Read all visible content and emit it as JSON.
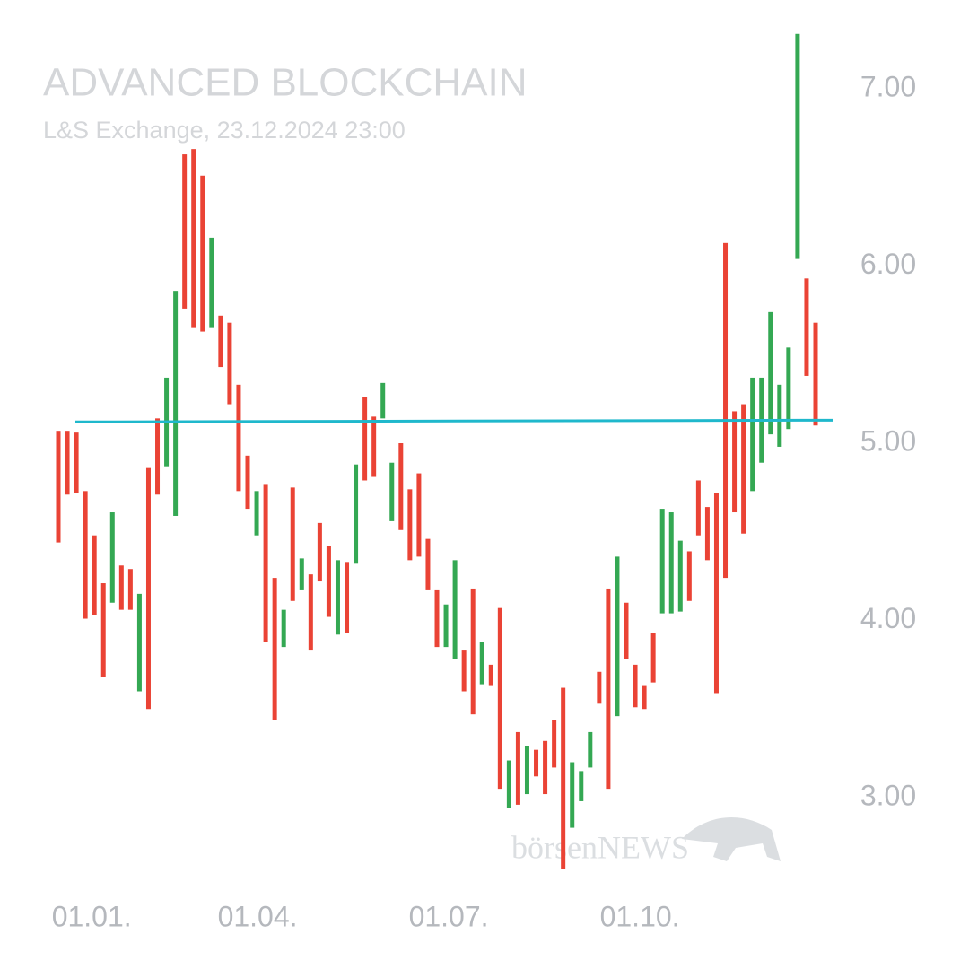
{
  "chart_data": {
    "type": "candlestick",
    "title": "ADVANCED BLOCKCHAIN",
    "subtitle": "L&S Exchange, 23.12.2024 23:00",
    "watermark": "börsenNEWS",
    "up_color": "#34a853",
    "down_color": "#ea4335",
    "categories": [
      null,
      null,
      null,
      null,
      null,
      null,
      null,
      null,
      null,
      null,
      null,
      null,
      null,
      null,
      null,
      null,
      null,
      null,
      null,
      null,
      null,
      null,
      null,
      null,
      null,
      null,
      null,
      null,
      null,
      null,
      null,
      null,
      null,
      null,
      null,
      null,
      null,
      null,
      null,
      null,
      null,
      null,
      null,
      null,
      null,
      null,
      null,
      null,
      null,
      null,
      null,
      null,
      null,
      null,
      null,
      null,
      null,
      null,
      null,
      null,
      null,
      null,
      null,
      null,
      null,
      null,
      null,
      null,
      null,
      null,
      null,
      null,
      null,
      null,
      null,
      null,
      null,
      null,
      null,
      null,
      null,
      null,
      null,
      null,
      null
    ],
    "open": [
      5.07,
      5.07,
      5.06,
      4.73,
      4.48,
      4.21,
      4.1,
      4.31,
      4.29,
      3.6,
      4.86,
      5.14,
      4.87,
      4.59,
      6.63,
      6.66,
      6.51,
      5.65,
      5.72,
      5.68,
      5.33,
      4.93,
      4.48,
      4.77,
      4.24,
      3.85,
      4.75,
      4.17,
      4.26,
      4.55,
      4.42,
      3.92,
      4.33,
      4.32,
      5.26,
      5.15,
      5.14,
      4.56,
      5.0,
      4.74,
      4.83,
      4.46,
      4.17,
      3.85,
      3.78,
      3.83,
      4.18,
      3.64,
      3.75,
      4.07,
      2.94,
      3.37,
      3.02,
      3.27,
      3.32,
      3.44,
      3.62,
      2.83,
      2.98,
      3.17,
      3.71,
      4.18,
      3.46,
      4.1,
      3.75,
      3.63,
      3.93,
      4.04,
      4.04,
      4.05,
      4.39,
      4.79,
      4.64,
      4.72,
      6.13,
      5.18,
      5.22,
      4.73,
      4.89,
      5.05,
      4.98,
      5.08,
      6.04,
      5.93,
      5.68
    ],
    "close": [
      4.44,
      4.71,
      4.72,
      4.01,
      4.03,
      3.68,
      4.61,
      4.06,
      4.06,
      4.15,
      3.5,
      4.71,
      5.37,
      5.86,
      5.76,
      5.65,
      5.63,
      6.16,
      5.43,
      5.22,
      4.73,
      4.63,
      4.73,
      3.88,
      3.44,
      4.06,
      4.11,
      4.35,
      3.83,
      4.22,
      4.02,
      4.34,
      3.93,
      4.88,
      4.79,
      4.81,
      5.34,
      4.89,
      4.51,
      4.34,
      4.36,
      4.17,
      3.85,
      4.09,
      4.34,
      3.6,
      3.47,
      3.88,
      3.63,
      3.05,
      3.21,
      2.96,
      3.29,
      3.12,
      3.02,
      3.17,
      2.6,
      3.2,
      3.15,
      3.37,
      3.53,
      3.05,
      4.36,
      3.78,
      3.51,
      3.5,
      3.65,
      4.63,
      4.61,
      4.45,
      4.11,
      4.48,
      4.34,
      3.59,
      4.24,
      4.61,
      4.49,
      5.37,
      5.37,
      5.74,
      5.33,
      5.54,
      7.31,
      5.38,
      5.1
    ],
    "reference_line": {
      "color": "#1fb8cc",
      "values": [
        5.12,
        5.13
      ]
    },
    "ylim": [
      2.6,
      7.4
    ],
    "yticks": [
      {
        "value": 3,
        "label": "3.00"
      },
      {
        "value": 4,
        "label": "4.00"
      },
      {
        "value": 5,
        "label": "5.00"
      },
      {
        "value": 6,
        "label": "6.00"
      },
      {
        "value": 7,
        "label": "7.00"
      }
    ],
    "xticks": [
      {
        "value": 3.7,
        "label": "01.01."
      },
      {
        "value": 22.1,
        "label": "01.04."
      },
      {
        "value": 43.3,
        "label": "01.07."
      },
      {
        "value": 64.5,
        "label": "01.10."
      }
    ],
    "grid": false
  }
}
